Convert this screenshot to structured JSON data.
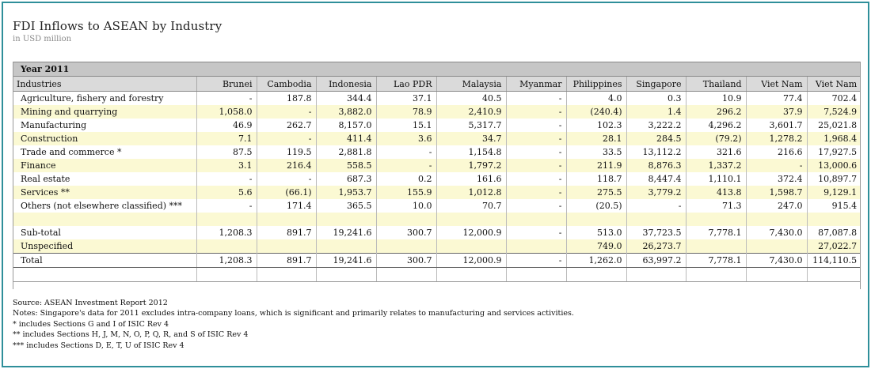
{
  "title": "FDI Inflows to ASEAN by Industry",
  "subtitle": "in USD million",
  "year_label": "Year 2011",
  "columns": [
    "Industries",
    "Brunei",
    "Cambodia",
    "Indonesia",
    "Lao PDR",
    "Malaysia",
    "Myanmar",
    "Philippines",
    "Singapore",
    "Thailand",
    "Viet Nam",
    "Viet Nam"
  ],
  "rows": [
    {
      "label": "Agriculture, fishery and forestry",
      "values": [
        "-",
        "187.8",
        "344.4",
        "37.1",
        "40.5",
        "-",
        "4.0",
        "0.3",
        "10.9",
        "77.4",
        "702.4"
      ]
    },
    {
      "label": "Mining and quarrying",
      "values": [
        "1,058.0",
        "-",
        "3,882.0",
        "78.9",
        "2,410.9",
        "-",
        "(240.4)",
        "1.4",
        "296.2",
        "37.9",
        "7,524.9"
      ]
    },
    {
      "label": "Manufacturing",
      "values": [
        "46.9",
        "262.7",
        "8,157.0",
        "15.1",
        "5,317.7",
        "-",
        "102.3",
        "3,222.2",
        "4,296.2",
        "3,601.7",
        "25,021.8"
      ]
    },
    {
      "label": "Construction",
      "values": [
        "7.1",
        "-",
        "411.4",
        "3.6",
        "34.7",
        "-",
        "28.1",
        "284.5",
        "(79.2)",
        "1,278.2",
        "1,968.4"
      ]
    },
    {
      "label": "Trade and commerce *",
      "values": [
        "87.5",
        "119.5",
        "2,881.8",
        "-",
        "1,154.8",
        "-",
        "33.5",
        "13,112.2",
        "321.6",
        "216.6",
        "17,927.5"
      ]
    },
    {
      "label": "Finance",
      "values": [
        "3.1",
        "216.4",
        "558.5",
        "-",
        "1,797.2",
        "-",
        "211.9",
        "8,876.3",
        "1,337.2",
        "-",
        "13,000.6"
      ]
    },
    {
      "label": "Real estate",
      "values": [
        "-",
        "-",
        "687.3",
        "0.2",
        "161.6",
        "-",
        "118.7",
        "8,447.4",
        "1,110.1",
        "372.4",
        "10,897.7"
      ]
    },
    {
      "label": "Services **",
      "values": [
        "5.6",
        "(66.1)",
        "1,953.7",
        "155.9",
        "1,012.8",
        "-",
        "275.5",
        "3,779.2",
        "413.8",
        "1,598.7",
        "9,129.1"
      ]
    },
    {
      "label": "Others (not elsewhere classified) ***",
      "values": [
        "-",
        "171.4",
        "365.5",
        "10.0",
        "70.7",
        "-",
        "(20.5)",
        "-",
        "71.3",
        "247.0",
        "915.4"
      ]
    },
    {
      "label": "",
      "values": [
        "",
        "",
        "",
        "",
        "",
        "",
        "",
        "",
        "",
        "",
        ""
      ]
    },
    {
      "label": "Sub-total",
      "values": [
        "1,208.3",
        "891.7",
        "19,241.6",
        "300.7",
        "12,000.9",
        "-",
        "513.0",
        "37,723.5",
        "7,778.1",
        "7,430.0",
        "87,087.8"
      ]
    },
    {
      "label": "Unspecified",
      "values": [
        "",
        "",
        "",
        "",
        "",
        "",
        "749.0",
        "26,273.7",
        "",
        "",
        "27,022.7"
      ]
    },
    {
      "label": "Total",
      "values": [
        "1,208.3",
        "891.7",
        "19,241.6",
        "300.7",
        "12,000.9",
        "-",
        "1,262.0",
        "63,997.2",
        "7,778.1",
        "7,430.0",
        "114,110.5"
      ]
    },
    {
      "label": "",
      "values": [
        "",
        "",
        "",
        "",
        "",
        "",
        "",
        "",
        "",
        "",
        ""
      ]
    }
  ],
  "notes": [
    "Source: ASEAN Investment Report 2012",
    "Notes: Singapore's data for 2011 excludes intra-company loans, which is significant and primarily relates to manufacturing and services activities.",
    "* includes Sections G and I of ISIC Rev 4",
    "** includes Sections H, J, M, N, O, P, Q, R, and S of ISIC Rev 4",
    "*** includes Sections D, E, T, U of ISIC Rev 4"
  ]
}
